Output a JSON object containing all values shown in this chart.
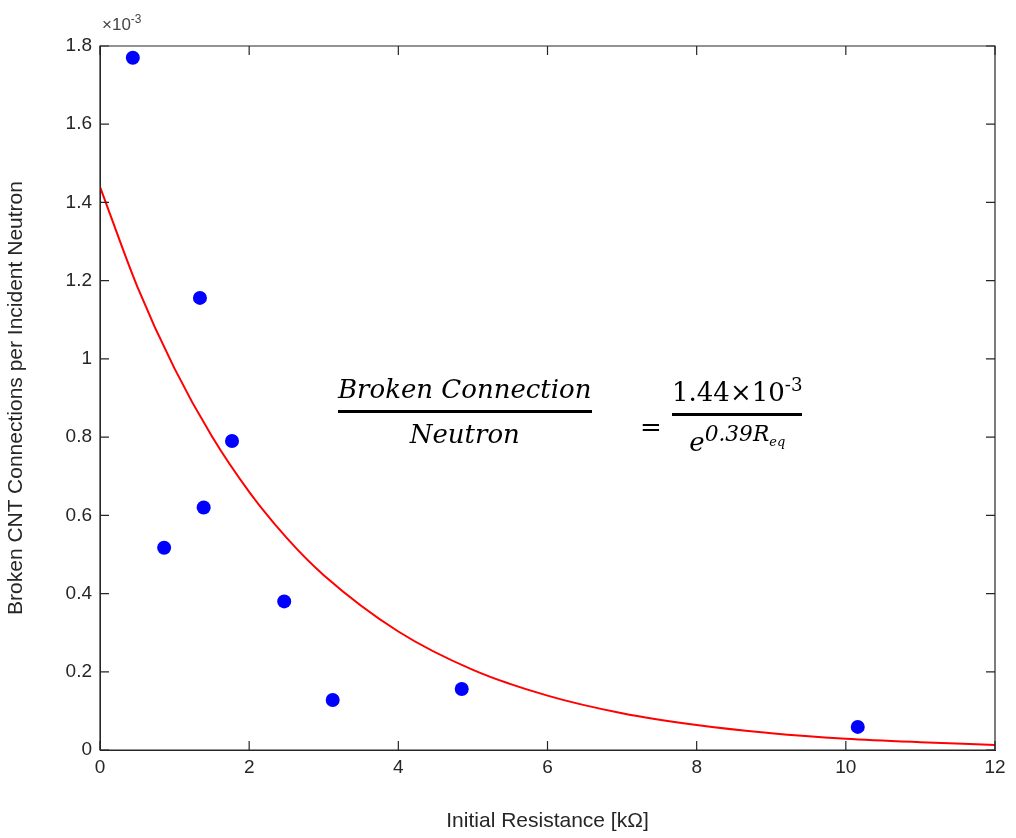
{
  "chart_data": {
    "type": "scatter",
    "xlabel": "Initial Resistance [kΩ]",
    "ylabel": "Broken CNT Connections per Incident Neutron",
    "xlim": [
      0,
      12
    ],
    "xticks": [
      0,
      2,
      4,
      6,
      8,
      10,
      12
    ],
    "ylim": [
      0,
      1.8
    ],
    "yticks": [
      0,
      0.2,
      0.4,
      0.6,
      0.8,
      1,
      1.2,
      1.4,
      1.6,
      1.8
    ],
    "grid": false,
    "legend": false,
    "marker": "circle",
    "annotations": [
      "×10$^{-3}$",
      "Broken Connection",
      "Neutron",
      "=",
      "1.44×10$^{-3}$",
      "e$^{0.39R}$",
      "eq"
    ],
    "series": [
      {
        "color": "#0000ff",
        "x": [
          0.44,
          1.34,
          1.77,
          1.39,
          0.86,
          2.47,
          3.12,
          4.85,
          10.16
        ],
        "values": [
          1.77,
          1.156,
          0.79,
          0.62,
          0.517,
          0.38,
          0.128,
          0.156,
          0.059
        ]
      },
      {
        "type": "line",
        "color": "#ff0000",
        "marker": "none",
        "line_style": "solid",
        "x": [
          0,
          0.5,
          1,
          1.5,
          2,
          2.5,
          3,
          4,
          5,
          6,
          7,
          8,
          9,
          10,
          11,
          12
        ],
        "values": [
          1.44,
          1.185,
          0.975,
          0.802,
          0.66,
          0.543,
          0.447,
          0.303,
          0.205,
          0.139,
          0.094,
          0.064,
          0.043,
          0.029,
          0.02,
          0.013
        ]
      }
    ]
  }
}
